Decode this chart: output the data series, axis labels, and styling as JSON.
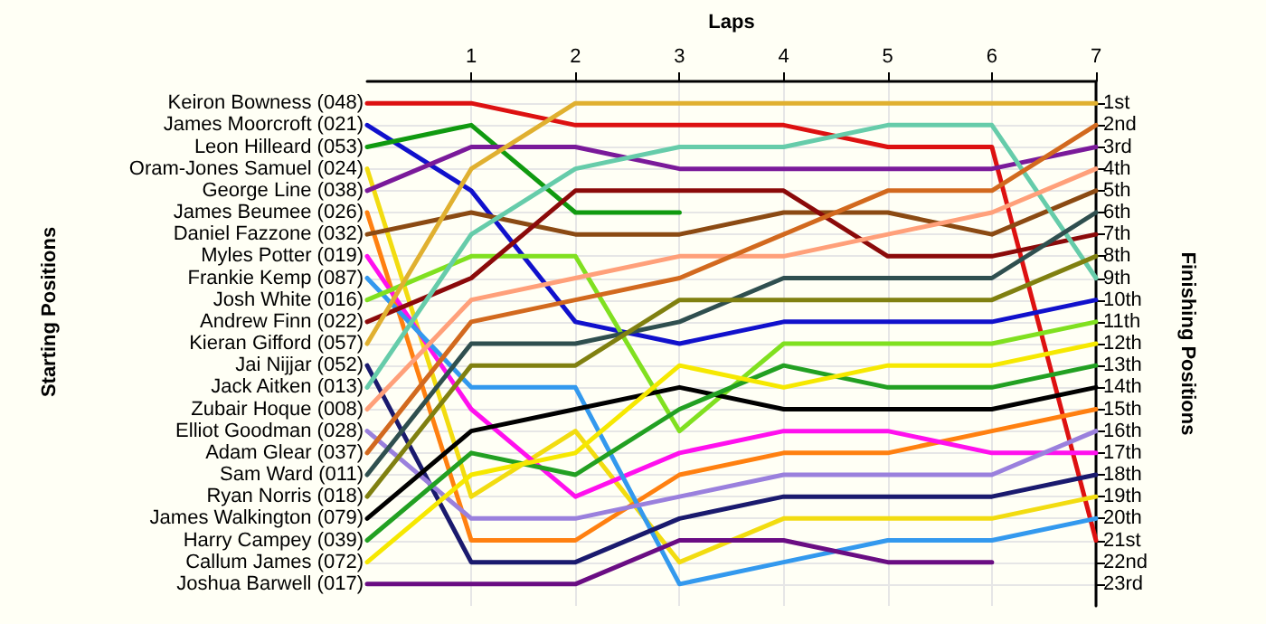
{
  "chart_data": {
    "type": "line",
    "xlabel": "Laps",
    "ylabel": "Finishing Positions",
    "annotations": [
      "Starting Positions"
    ],
    "x": [
      0,
      1,
      2,
      3,
      4,
      5,
      6,
      7
    ],
    "xlim": [
      0,
      7
    ],
    "xticks": [
      1,
      2,
      3,
      4,
      5,
      6,
      7
    ],
    "ylim": [
      24,
      0
    ],
    "yticks": [
      {
        "value": 1,
        "label": "1st"
      },
      {
        "value": 2,
        "label": "2nd"
      },
      {
        "value": 3,
        "label": "3rd"
      },
      {
        "value": 4,
        "label": "4th"
      },
      {
        "value": 5,
        "label": "5th"
      },
      {
        "value": 6,
        "label": "6th"
      },
      {
        "value": 7,
        "label": "7th"
      },
      {
        "value": 8,
        "label": "8th"
      },
      {
        "value": 9,
        "label": "9th"
      },
      {
        "value": 10,
        "label": "10th"
      },
      {
        "value": 11,
        "label": "11th"
      },
      {
        "value": 12,
        "label": "12th"
      },
      {
        "value": 13,
        "label": "13th"
      },
      {
        "value": 14,
        "label": "14th"
      },
      {
        "value": 15,
        "label": "15th"
      },
      {
        "value": 16,
        "label": "16th"
      },
      {
        "value": 17,
        "label": "17th"
      },
      {
        "value": 18,
        "label": "18th"
      },
      {
        "value": 19,
        "label": "19th"
      },
      {
        "value": 20,
        "label": "20th"
      },
      {
        "value": 21,
        "label": "21st"
      },
      {
        "value": 22,
        "label": "22nd"
      },
      {
        "value": 23,
        "label": "23rd"
      }
    ],
    "grid": true,
    "marker": "none",
    "line_style": "solid",
    "legend": "left",
    "series": [
      {
        "name": "Keiron Bowness (048)",
        "color": "#dd1111",
        "values": [
          1,
          1,
          2,
          2,
          2,
          3,
          3,
          21
        ]
      },
      {
        "name": "James Moorcroft (021)",
        "color": "#1111cc",
        "values": [
          2,
          5,
          11,
          12,
          11,
          11,
          11,
          10
        ]
      },
      {
        "name": "Leon Hilleard (053)",
        "color": "#109a10",
        "values": [
          3,
          2,
          6,
          6,
          null,
          null,
          null,
          null
        ]
      },
      {
        "name": "Oram-Jones Samuel (024)",
        "color": "#f2dc10",
        "values": [
          4,
          19,
          16,
          22,
          20,
          20,
          20,
          19
        ]
      },
      {
        "name": "George Line (038)",
        "color": "#7a1a9a",
        "values": [
          5,
          3,
          3,
          4,
          4,
          4,
          4,
          3
        ]
      },
      {
        "name": "James Beumee (026)",
        "color": "#ff8010",
        "values": [
          6,
          21,
          21,
          18,
          17,
          17,
          16,
          15
        ]
      },
      {
        "name": "Daniel Fazzone (032)",
        "color": "#8b4a13",
        "values": [
          7,
          6,
          7,
          7,
          6,
          6,
          7,
          5
        ]
      },
      {
        "name": "Myles Potter (019)",
        "color": "#ff10ee",
        "values": [
          8,
          15,
          19,
          17,
          16,
          16,
          17,
          17
        ]
      },
      {
        "name": "Frankie Kemp (087)",
        "color": "#3399ee",
        "values": [
          9,
          14,
          14,
          23,
          22,
          21,
          21,
          20
        ]
      },
      {
        "name": "Josh White (016)",
        "color": "#80e020",
        "values": [
          10,
          8,
          8,
          16,
          12,
          12,
          12,
          11
        ]
      },
      {
        "name": "Andrew Finn (022)",
        "color": "#8b0a0a",
        "values": [
          11,
          9,
          5,
          5,
          5,
          8,
          8,
          7
        ]
      },
      {
        "name": "Kieran Gifford (057)",
        "color": "#e0b030",
        "values": [
          12,
          4,
          1,
          1,
          1,
          1,
          1,
          1
        ]
      },
      {
        "name": "Jai Nijjar (052)",
        "color": "#1a1a6e",
        "values": [
          13,
          22,
          22,
          20,
          19,
          19,
          19,
          18
        ]
      },
      {
        "name": "Jack Aitken (013)",
        "color": "#66ccaa",
        "values": [
          14,
          7,
          4,
          3,
          3,
          2,
          2,
          9
        ]
      },
      {
        "name": "Zubair Hoque (008)",
        "color": "#ffa07a",
        "values": [
          15,
          10,
          9,
          8,
          8,
          7,
          6,
          4
        ]
      },
      {
        "name": "Elliot Goodman (028)",
        "color": "#9a80dd",
        "values": [
          16,
          20,
          20,
          19,
          18,
          18,
          18,
          16
        ]
      },
      {
        "name": "Adam Glear (037)",
        "color": "#d2691e",
        "values": [
          17,
          11,
          10,
          9,
          7,
          5,
          5,
          2
        ]
      },
      {
        "name": "Sam Ward (011)",
        "color": "#2f4f4f",
        "values": [
          18,
          12,
          12,
          11,
          9,
          9,
          9,
          6
        ]
      },
      {
        "name": "Ryan Norris (018)",
        "color": "#808010",
        "values": [
          19,
          13,
          13,
          10,
          10,
          10,
          10,
          8
        ]
      },
      {
        "name": "James Walkington (079)",
        "color": "#000000",
        "values": [
          20,
          16,
          15,
          14,
          15,
          15,
          15,
          14
        ]
      },
      {
        "name": "Harry Campey (039)",
        "color": "#22a022",
        "values": [
          21,
          17,
          18,
          15,
          13,
          14,
          14,
          13
        ]
      },
      {
        "name": "Callum James (072)",
        "color": "#f6e800",
        "values": [
          22,
          18,
          17,
          13,
          14,
          13,
          13,
          12
        ]
      },
      {
        "name": "Joshua Barwell (017)",
        "color": "#6a0d83",
        "values": [
          23,
          23,
          23,
          21,
          21,
          22,
          22,
          null
        ]
      }
    ]
  }
}
